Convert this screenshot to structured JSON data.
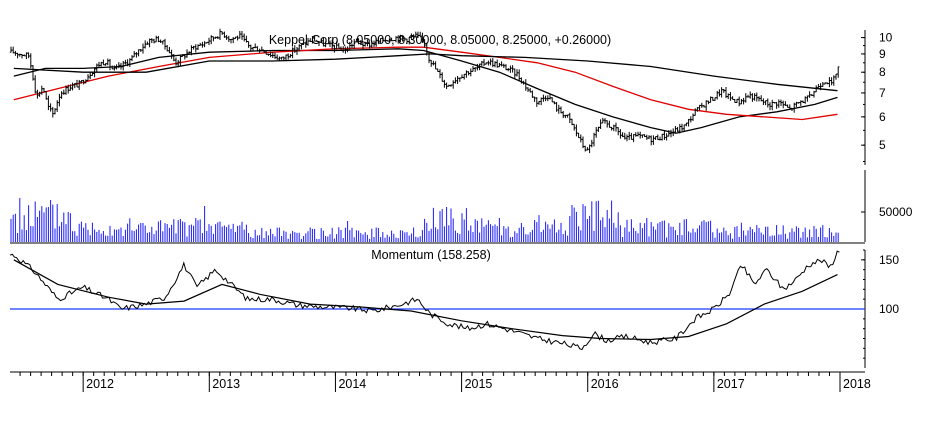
{
  "chart_data": [
    {
      "type": "candlestick",
      "title": "Keppel Corp (8.05000, 8.30000, 8.05000, 8.25000, +0.26000)",
      "y_ticks": [
        5,
        6,
        7,
        8,
        9,
        10
      ],
      "ylim": [
        4.4,
        10.5
      ],
      "y_scale": "log",
      "grid": false,
      "x_labels": [
        "2012",
        "2013",
        "2014",
        "2015",
        "2016",
        "2017",
        "2018"
      ],
      "close_path": [
        [
          2011.45,
          9.1
        ],
        [
          2011.5,
          9.0
        ],
        [
          2011.57,
          8.9
        ],
        [
          2011.63,
          6.8
        ],
        [
          2011.68,
          7.3
        ],
        [
          2011.72,
          6.4
        ],
        [
          2011.76,
          6.1
        ],
        [
          2011.82,
          7.0
        ],
        [
          2011.9,
          7.3
        ],
        [
          2011.97,
          7.4
        ],
        [
          2012.05,
          7.9
        ],
        [
          2012.12,
          8.4
        ],
        [
          2012.18,
          8.6
        ],
        [
          2012.24,
          8.1
        ],
        [
          2012.3,
          8.3
        ],
        [
          2012.38,
          8.7
        ],
        [
          2012.45,
          9.3
        ],
        [
          2012.52,
          9.8
        ],
        [
          2012.6,
          9.9
        ],
        [
          2012.67,
          9.3
        ],
        [
          2012.73,
          8.5
        ],
        [
          2012.8,
          8.9
        ],
        [
          2012.88,
          9.4
        ],
        [
          2012.95,
          9.6
        ],
        [
          2013.03,
          10.0
        ],
        [
          2013.1,
          10.3
        ],
        [
          2013.17,
          9.9
        ],
        [
          2013.24,
          10.1
        ],
        [
          2013.32,
          9.4
        ],
        [
          2013.4,
          9.3
        ],
        [
          2013.48,
          9.0
        ],
        [
          2013.57,
          8.7
        ],
        [
          2013.65,
          9.1
        ],
        [
          2013.73,
          9.5
        ],
        [
          2013.82,
          9.9
        ],
        [
          2013.9,
          9.6
        ],
        [
          2014.0,
          9.4
        ],
        [
          2014.08,
          9.2
        ],
        [
          2014.16,
          9.8
        ],
        [
          2014.24,
          9.5
        ],
        [
          2014.32,
          9.7
        ],
        [
          2014.4,
          9.9
        ],
        [
          2014.48,
          10.0
        ],
        [
          2014.56,
          9.9
        ],
        [
          2014.64,
          10.1
        ],
        [
          2014.7,
          9.8
        ],
        [
          2014.74,
          8.8
        ],
        [
          2014.8,
          8.1
        ],
        [
          2014.88,
          7.3
        ],
        [
          2014.96,
          7.7
        ],
        [
          2015.04,
          8.0
        ],
        [
          2015.12,
          8.2
        ],
        [
          2015.2,
          8.6
        ],
        [
          2015.28,
          8.4
        ],
        [
          2015.36,
          8.2
        ],
        [
          2015.44,
          7.9
        ],
        [
          2015.52,
          7.2
        ],
        [
          2015.6,
          6.6
        ],
        [
          2015.68,
          6.9
        ],
        [
          2015.76,
          6.3
        ],
        [
          2015.84,
          6.0
        ],
        [
          2015.9,
          5.5
        ],
        [
          2015.96,
          5.0
        ],
        [
          2016.0,
          4.8
        ],
        [
          2016.06,
          5.4
        ],
        [
          2016.12,
          5.8
        ],
        [
          2016.2,
          5.6
        ],
        [
          2016.3,
          5.2
        ],
        [
          2016.4,
          5.3
        ],
        [
          2016.5,
          5.2
        ],
        [
          2016.6,
          5.3
        ],
        [
          2016.7,
          5.5
        ],
        [
          2016.78,
          5.7
        ],
        [
          2016.85,
          6.2
        ],
        [
          2016.92,
          6.5
        ],
        [
          2017.0,
          6.8
        ],
        [
          2017.06,
          7.1
        ],
        [
          2017.12,
          6.8
        ],
        [
          2017.2,
          6.6
        ],
        [
          2017.28,
          6.9
        ],
        [
          2017.36,
          6.7
        ],
        [
          2017.44,
          6.5
        ],
        [
          2017.52,
          6.6
        ],
        [
          2017.6,
          6.3
        ],
        [
          2017.68,
          6.6
        ],
        [
          2017.76,
          6.8
        ],
        [
          2017.82,
          7.3
        ],
        [
          2017.88,
          7.6
        ],
        [
          2017.94,
          7.4
        ],
        [
          2017.98,
          8.25
        ]
      ],
      "series": [
        {
          "type": "line",
          "color": "#000000",
          "points": [
            [
              2011.45,
              7.8
            ],
            [
              2011.7,
              8.2
            ],
            [
              2012.0,
              8.2
            ],
            [
              2012.3,
              8.3
            ],
            [
              2012.6,
              8.8
            ],
            [
              2013.0,
              9.1
            ],
            [
              2013.5,
              9.2
            ],
            [
              2014.0,
              9.2
            ],
            [
              2014.5,
              9.3
            ],
            [
              2014.7,
              9.2
            ],
            [
              2015.0,
              8.6
            ],
            [
              2015.3,
              8.0
            ],
            [
              2015.6,
              7.2
            ],
            [
              2015.9,
              6.5
            ],
            [
              2016.2,
              6.0
            ],
            [
              2016.5,
              5.6
            ],
            [
              2016.7,
              5.4
            ],
            [
              2016.9,
              5.6
            ],
            [
              2017.2,
              6.0
            ],
            [
              2017.5,
              6.2
            ],
            [
              2017.8,
              6.5
            ],
            [
              2017.98,
              6.8
            ]
          ]
        },
        {
          "type": "line",
          "color": "#e00000",
          "points": [
            [
              2011.45,
              6.7
            ],
            [
              2011.8,
              7.2
            ],
            [
              2012.2,
              7.8
            ],
            [
              2012.6,
              8.3
            ],
            [
              2013.0,
              8.8
            ],
            [
              2013.5,
              9.1
            ],
            [
              2014.0,
              9.3
            ],
            [
              2014.5,
              9.4
            ],
            [
              2014.7,
              9.4
            ],
            [
              2015.0,
              9.1
            ],
            [
              2015.3,
              8.8
            ],
            [
              2015.6,
              8.5
            ],
            [
              2015.9,
              8.0
            ],
            [
              2016.2,
              7.3
            ],
            [
              2016.5,
              6.7
            ],
            [
              2016.8,
              6.3
            ],
            [
              2017.1,
              6.1
            ],
            [
              2017.4,
              6.0
            ],
            [
              2017.7,
              5.9
            ],
            [
              2017.98,
              6.1
            ]
          ]
        },
        {
          "type": "line",
          "color": "#000000",
          "points": [
            [
              2011.45,
              8.2
            ],
            [
              2012.0,
              8.0
            ],
            [
              2012.5,
              8.0
            ],
            [
              2013.0,
              8.6
            ],
            [
              2013.5,
              8.6
            ],
            [
              2014.0,
              8.7
            ],
            [
              2014.5,
              8.9
            ],
            [
              2014.75,
              9.0
            ],
            [
              2015.0,
              8.9
            ],
            [
              2015.5,
              8.8
            ],
            [
              2016.0,
              8.6
            ],
            [
              2016.5,
              8.3
            ],
            [
              2017.0,
              7.8
            ],
            [
              2017.5,
              7.4
            ],
            [
              2017.98,
              7.1
            ]
          ]
        }
      ]
    },
    {
      "type": "bar",
      "y_ticks": [
        50000
      ],
      "ylim": [
        0,
        120000
      ],
      "color": "#1a1aff",
      "grid": false
    },
    {
      "type": "line",
      "title": "Momentum (158.258)",
      "y_ticks": [
        100,
        150
      ],
      "ylim": [
        40,
        160
      ],
      "reference_line": 100,
      "reference_color": "#1a3aff",
      "grid": false,
      "series": [
        {
          "type": "line",
          "color": "#000000",
          "points": [
            [
              2011.45,
              155
            ],
            [
              2011.6,
              140
            ],
            [
              2011.8,
              110
            ],
            [
              2012.0,
              122
            ],
            [
              2012.2,
              110
            ],
            [
              2012.3,
              100
            ],
            [
              2012.5,
              105
            ],
            [
              2012.65,
              112
            ],
            [
              2012.8,
              145
            ],
            [
              2012.9,
              122
            ],
            [
              2013.05,
              140
            ],
            [
              2013.2,
              122
            ],
            [
              2013.3,
              110
            ],
            [
              2013.5,
              110
            ],
            [
              2013.7,
              104
            ],
            [
              2013.9,
              102
            ],
            [
              2014.1,
              101
            ],
            [
              2014.3,
              98
            ],
            [
              2014.5,
              104
            ],
            [
              2014.65,
              110
            ],
            [
              2014.75,
              95
            ],
            [
              2014.9,
              85
            ],
            [
              2015.05,
              80
            ],
            [
              2015.2,
              85
            ],
            [
              2015.4,
              78
            ],
            [
              2015.6,
              70
            ],
            [
              2015.8,
              65
            ],
            [
              2015.95,
              60
            ],
            [
              2016.05,
              75
            ],
            [
              2016.15,
              68
            ],
            [
              2016.3,
              72
            ],
            [
              2016.5,
              66
            ],
            [
              2016.7,
              70
            ],
            [
              2016.85,
              90
            ],
            [
              2017.0,
              100
            ],
            [
              2017.12,
              115
            ],
            [
              2017.22,
              145
            ],
            [
              2017.32,
              125
            ],
            [
              2017.42,
              140
            ],
            [
              2017.55,
              120
            ],
            [
              2017.65,
              130
            ],
            [
              2017.75,
              145
            ],
            [
              2017.85,
              150
            ],
            [
              2017.92,
              142
            ],
            [
              2017.98,
              158
            ]
          ]
        },
        {
          "type": "line",
          "color": "#000000",
          "points": [
            [
              2011.45,
              150
            ],
            [
              2011.8,
              125
            ],
            [
              2012.2,
              112
            ],
            [
              2012.5,
              105
            ],
            [
              2012.8,
              108
            ],
            [
              2013.1,
              125
            ],
            [
              2013.4,
              115
            ],
            [
              2013.8,
              105
            ],
            [
              2014.2,
              102
            ],
            [
              2014.6,
              98
            ],
            [
              2015.0,
              88
            ],
            [
              2015.4,
              80
            ],
            [
              2015.8,
              73
            ],
            [
              2016.1,
              70
            ],
            [
              2016.5,
              69
            ],
            [
              2016.8,
              72
            ],
            [
              2017.1,
              85
            ],
            [
              2017.4,
              105
            ],
            [
              2017.7,
              118
            ],
            [
              2017.98,
              135
            ]
          ]
        }
      ]
    }
  ]
}
